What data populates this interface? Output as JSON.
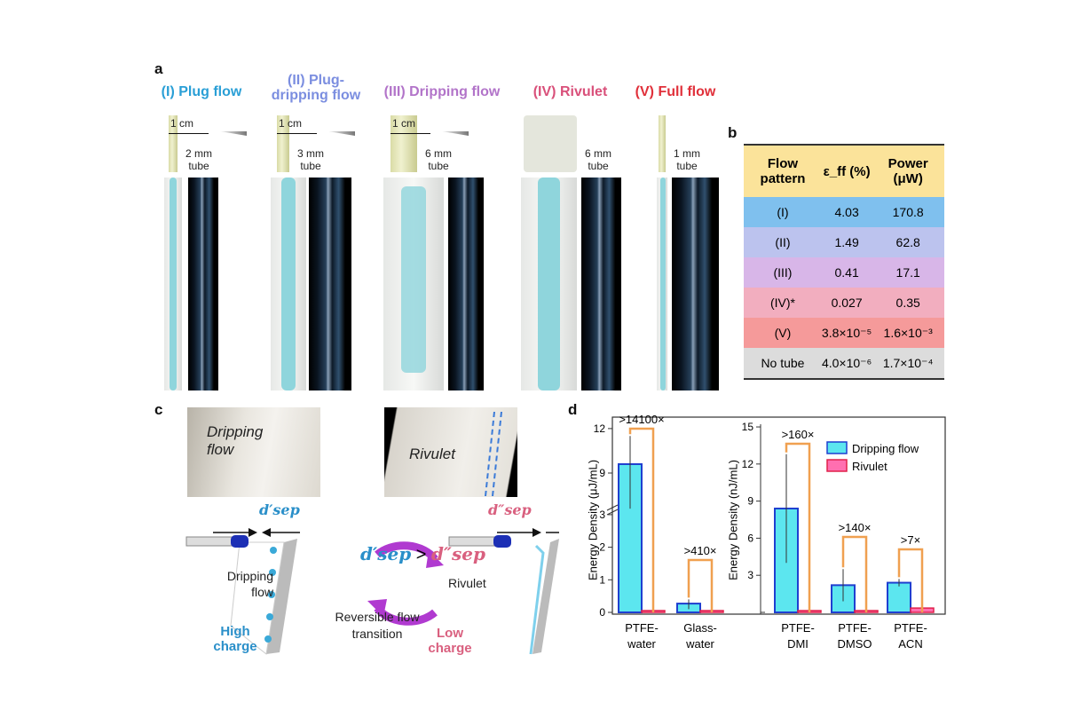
{
  "panel_a": {
    "label": "a",
    "patterns": [
      {
        "title": "(I) Plug flow",
        "color": "#2a9fd6",
        "scale": "1 cm",
        "tube": "2 mm",
        "tube_word": "tube"
      },
      {
        "title": "(II) Plug-dripping flow",
        "color": "#7b8ee0",
        "scale": "1 cm",
        "tube": "3 mm",
        "tube_word": "tube"
      },
      {
        "title": "(III) Dripping flow",
        "color": "#b274c9",
        "scale": "1 cm",
        "tube": "6 mm",
        "tube_word": "tube"
      },
      {
        "title": "(IV) Rivulet",
        "color": "#d9507a",
        "tube": "6 mm",
        "tube_word": "tube"
      },
      {
        "title": "(V) Full flow",
        "color": "#e0303a",
        "tube": "1 mm",
        "tube_word": "tube"
      }
    ]
  },
  "panel_b": {
    "label": "b",
    "headers": [
      "Flow pattern",
      "ε_ff (%)",
      "Power (μW)"
    ],
    "header_color": "#fbe39a",
    "rows": [
      {
        "pattern": "(I)",
        "eff": "4.03",
        "power": "170.8",
        "color": "#7fc0ee"
      },
      {
        "pattern": "(II)",
        "eff": "1.49",
        "power": "62.8",
        "color": "#bcc3ee"
      },
      {
        "pattern": "(III)",
        "eff": "0.41",
        "power": "17.1",
        "color": "#d8b6e8"
      },
      {
        "pattern": "(IV)*",
        "eff": "0.027",
        "power": "0.35",
        "color": "#f2aebf"
      },
      {
        "pattern": "(V)",
        "eff": "3.8×10⁻⁵",
        "power": "1.6×10⁻³",
        "color": "#f59a9a"
      },
      {
        "pattern": "No tube",
        "eff": "4.0×10⁻⁶",
        "power": "1.7×10⁻⁴",
        "color": "#dcdcdc"
      }
    ]
  },
  "panel_c": {
    "label": "c",
    "photo_left": "Dripping flow",
    "photo_right": "Rivulet",
    "d1": "d′sep",
    "d2": "d″sep",
    "compare": ">",
    "center_text": "Reversible flow transition",
    "left_text": "Dripping flow",
    "right_text": "Rivulet",
    "high": "High charge",
    "low": "Low charge"
  },
  "chart_data": {
    "type": "bar",
    "label": "d",
    "categories": [
      "PTFE-water",
      "Glass-water",
      "PTFE-DMI",
      "PTFE-DMSO",
      "PTFE-ACN"
    ],
    "series": [
      {
        "name": "Dripping flow",
        "color": "#5ce6ef",
        "values": [
          9.6,
          0.27,
          8.4,
          2.2,
          2.4
        ],
        "err_low": [
          6.6,
          0.1,
          4.0,
          0.9,
          2.1
        ],
        "err_high": [
          11.5,
          0.4,
          12.8,
          3.5,
          2.7
        ]
      },
      {
        "name": "Rivulet",
        "color": "#ff6fb0",
        "values": [
          0.0007,
          0.0007,
          0.05,
          0.015,
          0.35
        ]
      }
    ],
    "ratios": [
      ">14100×",
      ">410×",
      ">160×",
      ">140×",
      ">7×"
    ],
    "left_axis": {
      "label": "Energy Density (μJ/mL)",
      "ticks": [
        0,
        1,
        2,
        3,
        9,
        12
      ],
      "break": [
        3,
        6
      ],
      "ylim": [
        0,
        12.5
      ]
    },
    "right_axis": {
      "label": "Energy Density (nJ/mL)",
      "ticks": [
        3,
        6,
        9,
        12,
        15
      ],
      "ylim": [
        0,
        15
      ]
    },
    "legend": "top-right"
  }
}
